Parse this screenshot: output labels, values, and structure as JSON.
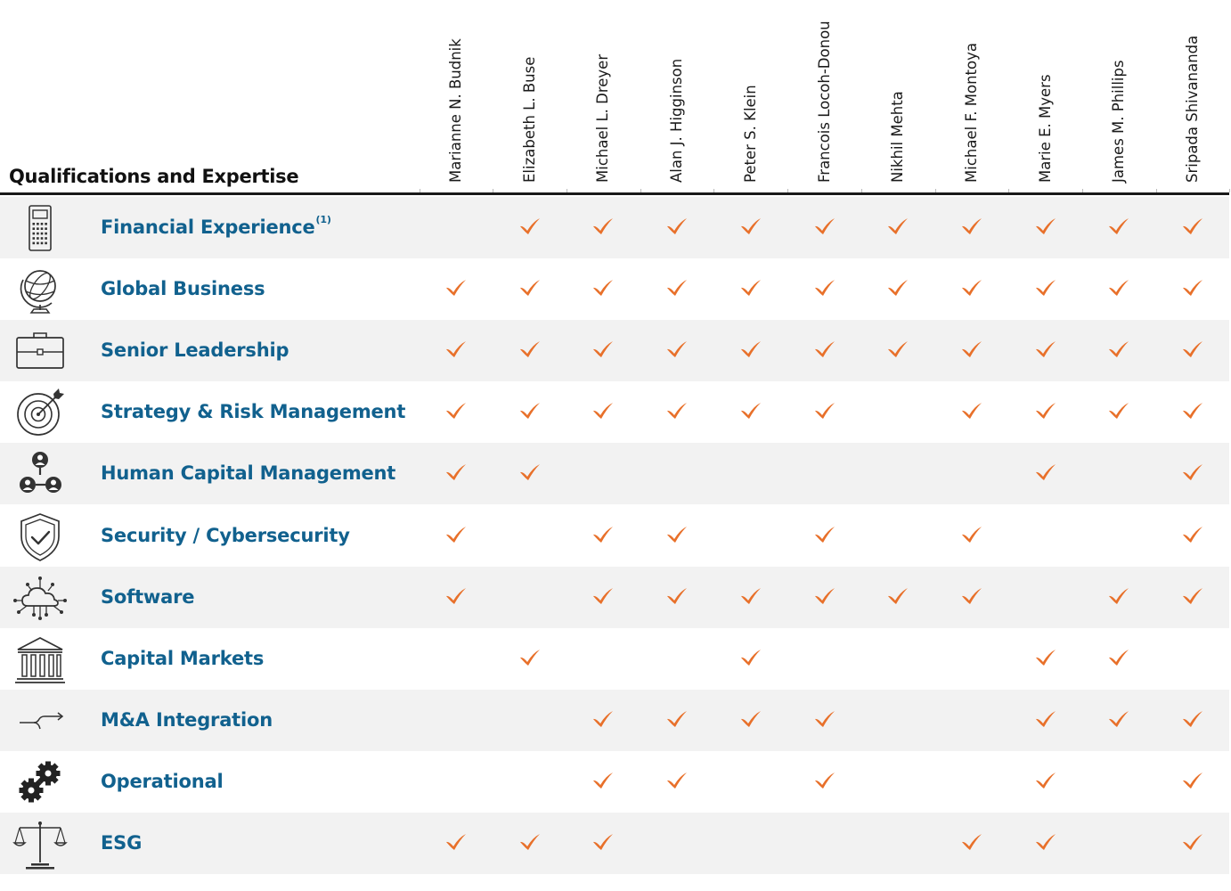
{
  "header": {
    "title": "Qualifications and Expertise"
  },
  "directors": [
    "Marianne N. Budnik",
    "Elizabeth L. Buse",
    "Michael L. Dreyer",
    "Alan J. Higginson",
    "Peter S. Klein",
    "Francois Locoh-Donou",
    "Nikhil Mehta",
    "Michael F. Montoya",
    "Marie E. Myers",
    "James M. Phillips",
    "Sripada Shivananda"
  ],
  "rows": [
    {
      "label": "Financial Experience",
      "sup": "(1)",
      "icon": "calculator-icon",
      "checks": [
        0,
        1,
        1,
        1,
        1,
        1,
        1,
        1,
        1,
        1,
        1
      ]
    },
    {
      "label": "Global Business",
      "sup": "",
      "icon": "globe-icon",
      "checks": [
        1,
        1,
        1,
        1,
        1,
        1,
        1,
        1,
        1,
        1,
        1
      ]
    },
    {
      "label": "Senior Leadership",
      "sup": "",
      "icon": "briefcase-icon",
      "checks": [
        1,
        1,
        1,
        1,
        1,
        1,
        1,
        1,
        1,
        1,
        1
      ]
    },
    {
      "label": "Strategy & Risk Management",
      "sup": "",
      "icon": "target-icon",
      "checks": [
        1,
        1,
        1,
        1,
        1,
        1,
        0,
        1,
        1,
        1,
        1
      ]
    },
    {
      "label": "Human Capital Management",
      "sup": "",
      "icon": "people-network-icon",
      "checks": [
        1,
        1,
        0,
        0,
        0,
        0,
        0,
        0,
        1,
        0,
        1
      ]
    },
    {
      "label": "Security / Cybersecurity",
      "sup": "",
      "icon": "shield-check-icon",
      "checks": [
        1,
        0,
        1,
        1,
        0,
        1,
        0,
        1,
        0,
        0,
        1
      ]
    },
    {
      "label": "Software",
      "sup": "",
      "icon": "cloud-network-icon",
      "checks": [
        1,
        0,
        1,
        1,
        1,
        1,
        1,
        1,
        0,
        1,
        1
      ]
    },
    {
      "label": "Capital Markets",
      "sup": "",
      "icon": "bank-building-icon",
      "checks": [
        0,
        1,
        0,
        0,
        1,
        0,
        0,
        0,
        1,
        1,
        0
      ]
    },
    {
      "label": "M&A Integration",
      "sup": "",
      "icon": "merge-arrow-icon",
      "checks": [
        0,
        0,
        1,
        1,
        1,
        1,
        0,
        0,
        1,
        1,
        1
      ]
    },
    {
      "label": "Operational",
      "sup": "",
      "icon": "gears-icon",
      "checks": [
        0,
        0,
        1,
        1,
        0,
        1,
        0,
        0,
        1,
        0,
        1
      ]
    },
    {
      "label": "ESG",
      "sup": "",
      "icon": "scales-icon",
      "checks": [
        1,
        1,
        1,
        0,
        0,
        0,
        0,
        1,
        1,
        0,
        1
      ]
    }
  ],
  "colors": {
    "check": "#e8702a",
    "label": "#11618e",
    "shade": "#f2f2f2"
  }
}
